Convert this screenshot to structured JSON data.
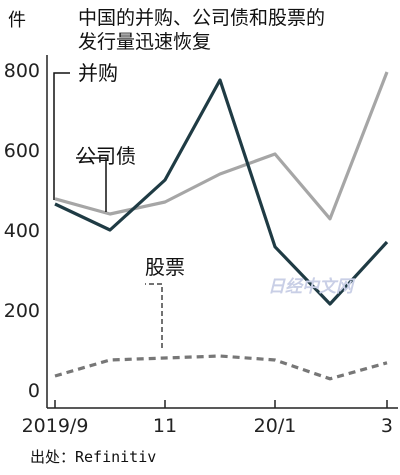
{
  "chart_data": {
    "type": "line",
    "title_lines": [
      "中国的并购、公司债和股票的",
      "发行量迅速恢复"
    ],
    "y_unit": "件",
    "source": "出处：Refinitiv",
    "watermark": "日经中文网",
    "x_tick_labels": [
      "2019/9",
      "11",
      "20/1",
      "3"
    ],
    "x": [
      "2019/9",
      "2019/10",
      "2019/11",
      "2019/12",
      "2020/1",
      "2020/2",
      "2020/3"
    ],
    "y_ticks": [
      0,
      200,
      400,
      600,
      800
    ],
    "ylim": [
      0,
      800
    ],
    "grid": false,
    "series": [
      {
        "name": "并购",
        "values": [
          465,
          400,
          525,
          775,
          358,
          215,
          370
        ],
        "color": "#1f3b44",
        "style": "solid"
      },
      {
        "name": "公司债",
        "values": [
          478,
          440,
          470,
          540,
          590,
          428,
          795
        ],
        "color": "#a6a6a6",
        "style": "solid"
      },
      {
        "name": "股票",
        "values": [
          35,
          75,
          80,
          85,
          75,
          28,
          68
        ],
        "color": "#777777",
        "style": "dashed"
      }
    ]
  }
}
